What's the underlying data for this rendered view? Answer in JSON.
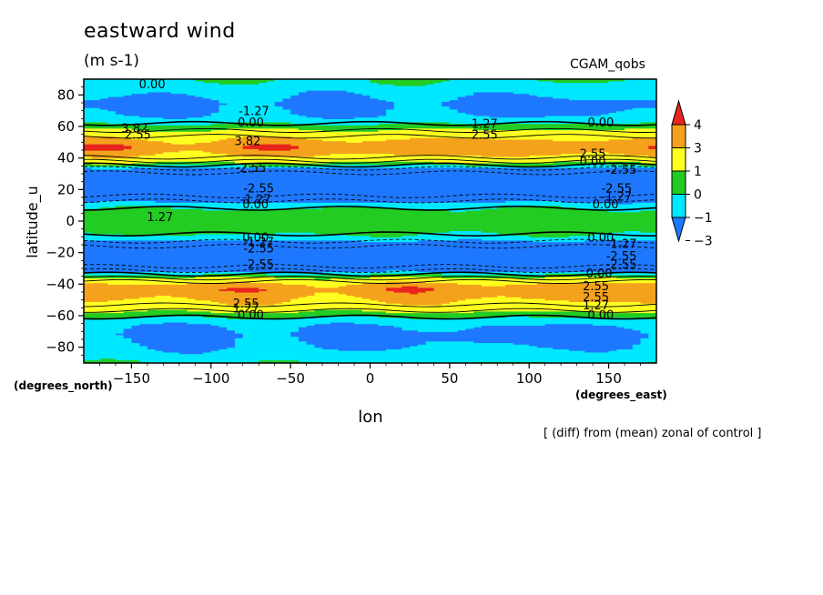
{
  "header": {
    "title": "eastward wind",
    "units": "(m s-1)",
    "model": "CGAM_qobs",
    "note": "[ (diff) from (mean) zonal of control ]"
  },
  "axes": {
    "x_unit": "(degrees_east)",
    "y_unit": "(degrees_north)"
  },
  "colorbar": {
    "labels": [
      "4",
      "3",
      "1",
      "0",
      "-1",
      "-3"
    ],
    "colors": [
      "#e8241d",
      "#f4a21c",
      "#ffff20",
      "#22cc22",
      "#00e8ff",
      "#1e78ff"
    ]
  },
  "chart_data": {
    "type": "heatmap",
    "title": "eastward wind",
    "subtitle": "(m s-1)",
    "xlabel": "lon",
    "ylabel": "latitude_u",
    "xlim": [
      -180,
      180
    ],
    "ylim": [
      -90,
      90
    ],
    "xticks": [
      -150,
      -100,
      -50,
      0,
      50,
      100,
      150
    ],
    "yticks": [
      -80,
      -60,
      -40,
      -20,
      0,
      20,
      40,
      60,
      80
    ],
    "grid": false,
    "levels": [
      -3,
      -1,
      0,
      1,
      3,
      4
    ],
    "level_colors": [
      "#1e78ff",
      "#00e8ff",
      "#22cc22",
      "#ffff20",
      "#f4a21c",
      "#e8241d"
    ],
    "zonal_profile": [
      {
        "lat": -90,
        "value": 0.0
      },
      {
        "lat": -86,
        "value": -0.5
      },
      {
        "lat": -80,
        "value": -1.0
      },
      {
        "lat": -72,
        "value": -1.2
      },
      {
        "lat": -66,
        "value": -1.0
      },
      {
        "lat": -62,
        "value": -0.3
      },
      {
        "lat": -59,
        "value": 0.5
      },
      {
        "lat": -56,
        "value": 1.5
      },
      {
        "lat": -53,
        "value": 2.6
      },
      {
        "lat": -48,
        "value": 3.3
      },
      {
        "lat": -43,
        "value": 3.7
      },
      {
        "lat": -40,
        "value": 3.3
      },
      {
        "lat": -38,
        "value": 2.4
      },
      {
        "lat": -36,
        "value": 1.2
      },
      {
        "lat": -34,
        "value": 0.2
      },
      {
        "lat": -32,
        "value": -1.0
      },
      {
        "lat": -29,
        "value": -2.5
      },
      {
        "lat": -24,
        "value": -3.3
      },
      {
        "lat": -18,
        "value": -3.3
      },
      {
        "lat": -14,
        "value": -1.8
      },
      {
        "lat": -11,
        "value": -0.5
      },
      {
        "lat": -7,
        "value": 0.2
      },
      {
        "lat": -3,
        "value": 0.6
      },
      {
        "lat": 3,
        "value": 0.6
      },
      {
        "lat": 7,
        "value": 0.2
      },
      {
        "lat": 11,
        "value": -0.5
      },
      {
        "lat": 14,
        "value": -1.8
      },
      {
        "lat": 18,
        "value": -3.3
      },
      {
        "lat": 25,
        "value": -3.3
      },
      {
        "lat": 31,
        "value": -2.5
      },
      {
        "lat": 34,
        "value": -1.0
      },
      {
        "lat": 36,
        "value": 0.3
      },
      {
        "lat": 38,
        "value": 1.3
      },
      {
        "lat": 40,
        "value": 2.4
      },
      {
        "lat": 43,
        "value": 3.3
      },
      {
        "lat": 47,
        "value": 3.8
      },
      {
        "lat": 51,
        "value": 3.3
      },
      {
        "lat": 54,
        "value": 2.5
      },
      {
        "lat": 57,
        "value": 1.4
      },
      {
        "lat": 60,
        "value": 0.5
      },
      {
        "lat": 63,
        "value": -0.3
      },
      {
        "lat": 67,
        "value": -1.0
      },
      {
        "lat": 75,
        "value": -1.2
      },
      {
        "lat": 82,
        "value": -0.8
      },
      {
        "lat": 87,
        "value": -0.2
      },
      {
        "lat": 90,
        "value": 0.0
      }
    ],
    "contour_labels": [
      {
        "text": "0.00",
        "lon": -137,
        "lat": 87
      },
      {
        "text": "-1.27",
        "lon": -73,
        "lat": 70
      },
      {
        "text": "0.00",
        "lon": -75,
        "lat": 63
      },
      {
        "text": "0.00",
        "lon": 145,
        "lat": 63
      },
      {
        "text": "1.27",
        "lon": 72,
        "lat": 62
      },
      {
        "text": "2.55",
        "lon": 72,
        "lat": 55
      },
      {
        "text": "3.82",
        "lon": -148,
        "lat": 59
      },
      {
        "text": "2.55",
        "lon": -146,
        "lat": 55
      },
      {
        "text": "3.82",
        "lon": -77,
        "lat": 51
      },
      {
        "text": "2.55",
        "lon": 140,
        "lat": 43
      },
      {
        "text": "0.00",
        "lon": 140,
        "lat": 38
      },
      {
        "text": "-2.55",
        "lon": 158,
        "lat": 33
      },
      {
        "text": "-2.55",
        "lon": -75,
        "lat": 34
      },
      {
        "text": "-2.55",
        "lon": -70,
        "lat": 21
      },
      {
        "text": "-1.27",
        "lon": -72,
        "lat": 14
      },
      {
        "text": "0.00",
        "lon": -72,
        "lat": 11
      },
      {
        "text": "-2.55",
        "lon": 155,
        "lat": 21
      },
      {
        "text": "-1.27",
        "lon": 155,
        "lat": 16
      },
      {
        "text": "0.00",
        "lon": 148,
        "lat": 11
      },
      {
        "text": "1.27",
        "lon": -132,
        "lat": 3
      },
      {
        "text": "0.00",
        "lon": -72,
        "lat": -10
      },
      {
        "text": "-1.27",
        "lon": -70,
        "lat": -13
      },
      {
        "text": "-2.55",
        "lon": -70,
        "lat": -17
      },
      {
        "text": "-2.55",
        "lon": -70,
        "lat": -27
      },
      {
        "text": "0.00",
        "lon": 145,
        "lat": -10
      },
      {
        "text": "-1.27",
        "lon": 158,
        "lat": -14
      },
      {
        "text": "-2.55",
        "lon": 158,
        "lat": -22
      },
      {
        "text": "-2.55",
        "lon": 158,
        "lat": -27
      },
      {
        "text": "0.00",
        "lon": 144,
        "lat": -33
      },
      {
        "text": "2.55",
        "lon": 142,
        "lat": -41
      },
      {
        "text": "2.55",
        "lon": 142,
        "lat": -48
      },
      {
        "text": "1.27",
        "lon": 142,
        "lat": -53
      },
      {
        "text": "0.00",
        "lon": 145,
        "lat": -59
      },
      {
        "text": "2.55",
        "lon": -78,
        "lat": -52
      },
      {
        "text": "1.27",
        "lon": -78,
        "lat": -55
      },
      {
        "text": "0.00",
        "lon": -75,
        "lat": -59
      }
    ]
  }
}
